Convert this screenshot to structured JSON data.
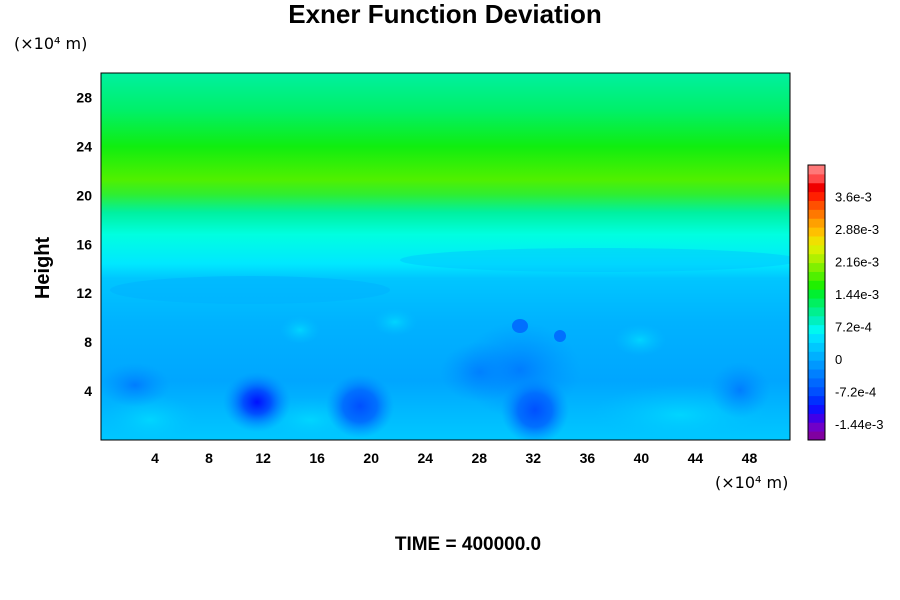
{
  "chart_data": {
    "type": "heatmap",
    "title": "Exner Function Deviation",
    "xlabel": "",
    "ylabel": "Height",
    "x_unit": "(×10⁴ m)",
    "y_unit": "(×10⁴ m)",
    "xlim": [
      0,
      51
    ],
    "ylim": [
      0,
      30
    ],
    "x_ticks": [
      4,
      8,
      12,
      16,
      20,
      24,
      28,
      32,
      36,
      40,
      44,
      48
    ],
    "y_ticks": [
      4,
      8,
      12,
      16,
      20,
      24,
      28
    ],
    "colorbar": {
      "range": [
        -0.0018,
        0.0043
      ],
      "tick_values": [
        -0.00144,
        -0.00072,
        0,
        0.00072,
        0.00144,
        0.00216,
        0.00288,
        0.0036
      ],
      "tick_labels": [
        "-1.44e-3",
        "-7.2e-4",
        "0",
        "7.2e-4",
        "1.44e-3",
        "2.16e-3",
        "2.88e-3",
        "3.6e-3"
      ],
      "placement": "right"
    },
    "grid": false,
    "footer": "TIME = 400000.0"
  }
}
